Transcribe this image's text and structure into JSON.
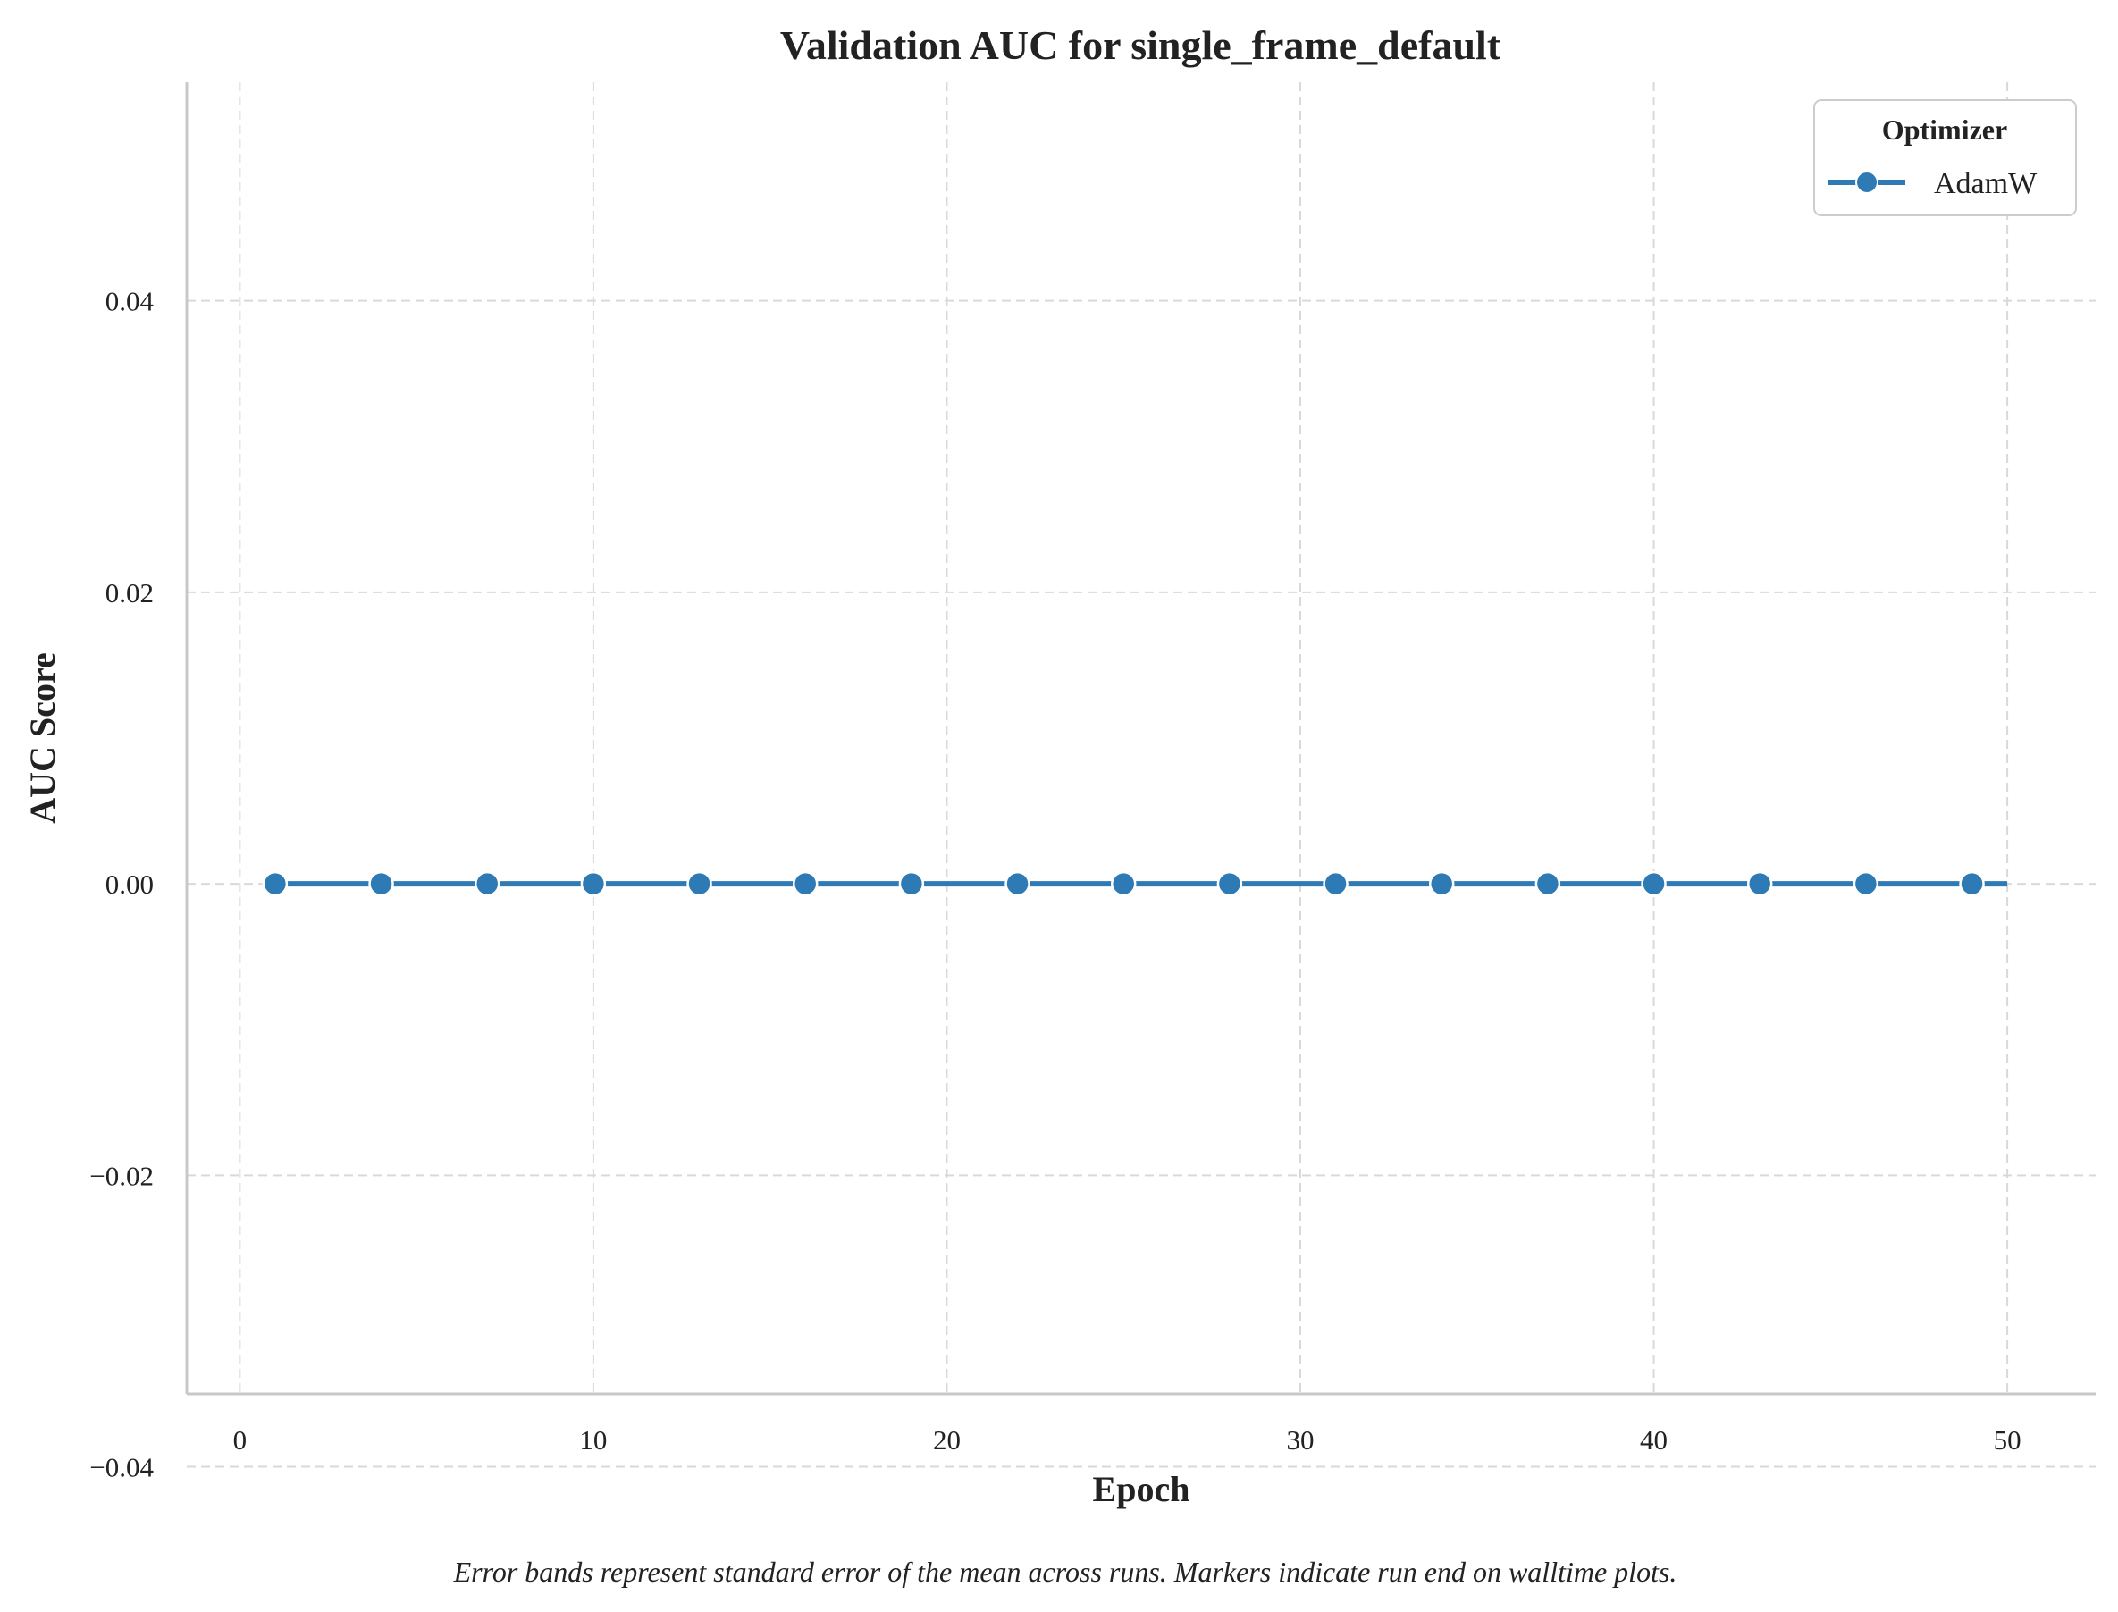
{
  "chart_data": {
    "type": "line",
    "title": "Validation AUC for single_frame_default",
    "xlabel": "Epoch",
    "ylabel": "AUC Score",
    "xlim": [
      -1.5,
      52.5
    ],
    "ylim": [
      -0.035,
      0.055
    ],
    "xticks": [
      0,
      10,
      20,
      30,
      40,
      50
    ],
    "xtick_labels": [
      "0",
      "10",
      "20",
      "30",
      "40",
      "50"
    ],
    "yticks": [
      -0.04,
      -0.02,
      0.0,
      0.02,
      0.04
    ],
    "ytick_labels": [
      "−0.04",
      "−0.02",
      "0.00",
      "0.02",
      "0.04"
    ],
    "grid": true,
    "legend": {
      "title": "Optimizer",
      "placement": "top-right"
    },
    "series": [
      {
        "name": "AdamW",
        "color": "#2e7ab5",
        "x": [
          1,
          2,
          3,
          4,
          5,
          6,
          7,
          8,
          9,
          10,
          11,
          12,
          13,
          14,
          15,
          16,
          17,
          18,
          19,
          20,
          21,
          22,
          23,
          24,
          25,
          26,
          27,
          28,
          29,
          30,
          31,
          32,
          33,
          34,
          35,
          36,
          37,
          38,
          39,
          40,
          41,
          42,
          43,
          44,
          45,
          46,
          47,
          48,
          49,
          50
        ],
        "y": [
          0,
          0,
          0,
          0,
          0,
          0,
          0,
          0,
          0,
          0,
          0,
          0,
          0,
          0,
          0,
          0,
          0,
          0,
          0,
          0,
          0,
          0,
          0,
          0,
          0,
          0,
          0,
          0,
          0,
          0,
          0,
          0,
          0,
          0,
          0,
          0,
          0,
          0,
          0,
          0,
          0,
          0,
          0,
          0,
          0,
          0,
          0,
          0,
          0,
          0
        ],
        "marker_x": [
          1,
          4,
          7,
          10,
          13,
          16,
          19,
          22,
          25,
          28,
          31,
          34,
          37,
          40,
          43,
          46,
          49
        ]
      }
    ],
    "caption": "Error bands represent standard error of the mean across runs. Markers indicate run end on walltime plots."
  }
}
